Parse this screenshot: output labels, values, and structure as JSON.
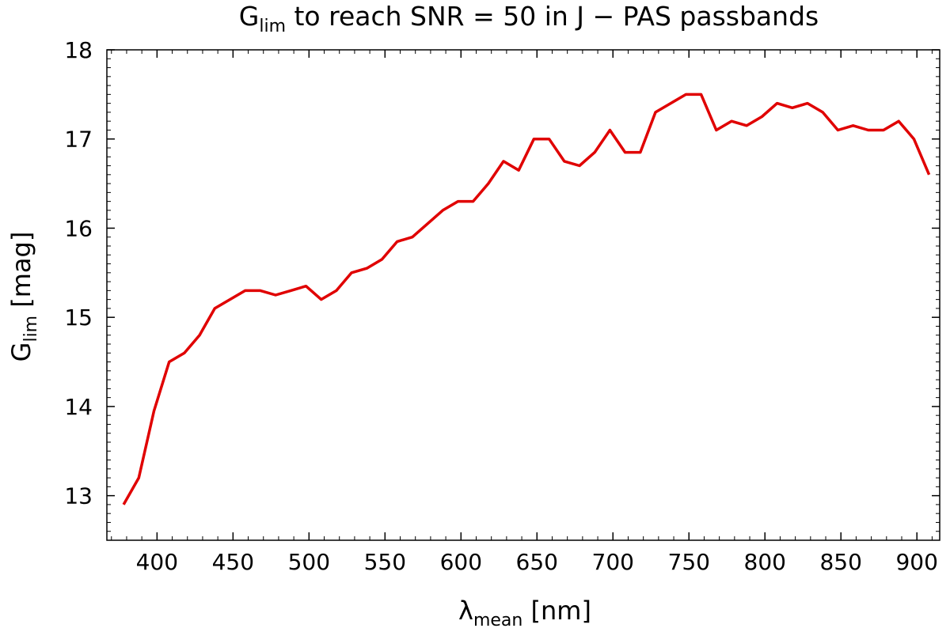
{
  "chart_data": {
    "type": "line",
    "title": {
      "prefix": "G",
      "subscript": "lim",
      "suffix": " to reach SNR = 50 in J − PAS passbands"
    },
    "xlabel": {
      "symbol": "λ",
      "subscript": "mean",
      "suffix": " [nm]"
    },
    "ylabel": {
      "symbol": "G",
      "subscript": "lim",
      "suffix": " [mag]"
    },
    "xlim": [
      367,
      915
    ],
    "ylim": [
      12.5,
      18
    ],
    "xticks": [
      400,
      450,
      500,
      550,
      600,
      650,
      700,
      750,
      800,
      850,
      900
    ],
    "yticks": [
      13,
      14,
      15,
      16,
      17,
      18
    ],
    "grid": false,
    "line_color": "#e00000",
    "series": [
      {
        "x": [
          378,
          388,
          398,
          408,
          418,
          428,
          438,
          448,
          458,
          468,
          478,
          488,
          498,
          508,
          518,
          528,
          538,
          548,
          558,
          568,
          578,
          588,
          598,
          608,
          618,
          628,
          638,
          648,
          658,
          668,
          678,
          688,
          698,
          708,
          718,
          728,
          738,
          748,
          758,
          768,
          778,
          788,
          798,
          808,
          818,
          828,
          838,
          848,
          858,
          868,
          878,
          888,
          898,
          908
        ],
        "y": [
          12.9,
          13.2,
          13.95,
          14.5,
          14.6,
          14.8,
          15.1,
          15.2,
          15.3,
          15.3,
          15.25,
          15.3,
          15.35,
          15.2,
          15.3,
          15.5,
          15.55,
          15.65,
          15.85,
          15.9,
          16.05,
          16.2,
          16.3,
          16.3,
          16.5,
          16.75,
          16.65,
          17.0,
          17.0,
          16.75,
          16.7,
          16.85,
          17.1,
          16.85,
          16.85,
          17.3,
          17.4,
          17.5,
          17.5,
          17.1,
          17.2,
          17.15,
          17.25,
          17.4,
          17.35,
          17.4,
          17.3,
          17.1,
          17.15,
          17.1,
          17.1,
          17.2,
          17.0,
          16.6
        ]
      }
    ]
  }
}
